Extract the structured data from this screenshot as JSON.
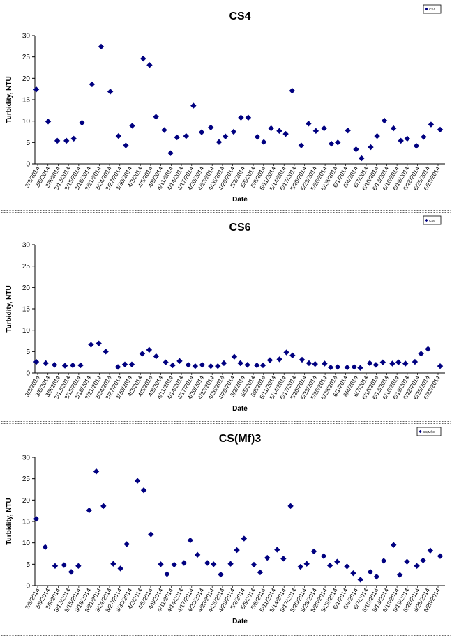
{
  "chart_data": [
    {
      "type": "scatter",
      "title": "CS4",
      "xlabel": "Date",
      "ylabel": "Turbidity, NTU",
      "ylim": [
        0,
        30
      ],
      "yticks": [
        0,
        5,
        10,
        15,
        20,
        25,
        30
      ],
      "grid": false,
      "legend_position": "top-right",
      "legend": "CS4",
      "marker_color": "#000080",
      "xtick_labels": [
        "3/3/2014",
        "3/6/2014",
        "3/9/2014",
        "3/12/2014",
        "3/15/2014",
        "3/18/2014",
        "3/21/2014",
        "3/24/2014",
        "3/27/2014",
        "3/30/2014",
        "4/2/2014",
        "4/5/2014",
        "4/8/2014",
        "4/11/2014",
        "4/14/2014",
        "4/17/2014",
        "4/20/2014",
        "4/23/2014",
        "4/26/2014",
        "4/29/2014",
        "5/2/2014",
        "5/5/2014",
        "5/8/2014",
        "5/11/2014",
        "5/14/2014",
        "5/17/2014",
        "5/20/2014",
        "5/23/2014",
        "5/26/2014",
        "5/29/2014",
        "6/1/2014",
        "6/4/2014",
        "6/7/2014",
        "6/10/2014",
        "6/13/2014",
        "6/16/2014",
        "6/19/2014",
        "6/22/2014",
        "6/25/2014",
        "6/28/2014"
      ],
      "points": [
        {
          "x": 0,
          "y": 17.4
        },
        {
          "x": 1.3,
          "y": 9.9
        },
        {
          "x": 2.3,
          "y": 5.4
        },
        {
          "x": 3.3,
          "y": 5.4
        },
        {
          "x": 4.1,
          "y": 5.9
        },
        {
          "x": 5.0,
          "y": 9.6
        },
        {
          "x": 6.1,
          "y": 18.6
        },
        {
          "x": 7.1,
          "y": 27.4
        },
        {
          "x": 8.1,
          "y": 16.9
        },
        {
          "x": 9.0,
          "y": 6.5
        },
        {
          "x": 9.8,
          "y": 4.3
        },
        {
          "x": 10.5,
          "y": 8.9
        },
        {
          "x": 11.7,
          "y": 24.6
        },
        {
          "x": 12.4,
          "y": 23.1
        },
        {
          "x": 13.1,
          "y": 11.0
        },
        {
          "x": 14.0,
          "y": 7.9
        },
        {
          "x": 14.7,
          "y": 2.5
        },
        {
          "x": 15.4,
          "y": 6.2
        },
        {
          "x": 16.4,
          "y": 6.5
        },
        {
          "x": 17.2,
          "y": 13.6
        },
        {
          "x": 18.1,
          "y": 7.4
        },
        {
          "x": 19.1,
          "y": 8.5
        },
        {
          "x": 20.0,
          "y": 5.1
        },
        {
          "x": 20.7,
          "y": 6.4
        },
        {
          "x": 21.6,
          "y": 7.5
        },
        {
          "x": 22.4,
          "y": 10.8
        },
        {
          "x": 23.2,
          "y": 10.8
        },
        {
          "x": 24.2,
          "y": 6.3
        },
        {
          "x": 24.9,
          "y": 5.1
        },
        {
          "x": 25.7,
          "y": 8.3
        },
        {
          "x": 26.6,
          "y": 7.7
        },
        {
          "x": 27.3,
          "y": 7.0
        },
        {
          "x": 28.0,
          "y": 17.1
        },
        {
          "x": 29.0,
          "y": 4.3
        },
        {
          "x": 29.8,
          "y": 9.4
        },
        {
          "x": 30.6,
          "y": 7.7
        },
        {
          "x": 31.5,
          "y": 8.3
        },
        {
          "x": 32.3,
          "y": 4.7
        },
        {
          "x": 33.0,
          "y": 5.0
        },
        {
          "x": 34.1,
          "y": 7.8
        },
        {
          "x": 35.0,
          "y": 3.4
        },
        {
          "x": 35.6,
          "y": 1.3
        },
        {
          "x": 36.6,
          "y": 3.9
        },
        {
          "x": 37.3,
          "y": 6.5
        },
        {
          "x": 38.1,
          "y": 10.1
        },
        {
          "x": 39.1,
          "y": 8.3
        },
        {
          "x": 39.9,
          "y": 5.4
        },
        {
          "x": 40.6,
          "y": 5.9
        },
        {
          "x": 41.6,
          "y": 4.2
        },
        {
          "x": 42.4,
          "y": 6.3
        },
        {
          "x": 43.2,
          "y": 9.2
        },
        {
          "x": 44.2,
          "y": 8.0
        }
      ]
    },
    {
      "type": "scatter",
      "title": "CS6",
      "xlabel": "Date",
      "ylabel": "Turbidity, NTU",
      "ylim": [
        0,
        30
      ],
      "yticks": [
        0,
        5,
        10,
        15,
        20,
        25,
        30
      ],
      "grid": false,
      "legend_position": "top-right",
      "legend": "CS6",
      "marker_color": "#000080",
      "xtick_labels": [
        "3/3/2014",
        "3/6/2014",
        "3/9/2014",
        "3/12/2014",
        "3/15/2014",
        "3/18/2014",
        "3/21/2014",
        "3/24/2014",
        "3/27/2014",
        "3/30/2014",
        "4/2/2014",
        "4/5/2014",
        "4/8/2014",
        "4/11/2014",
        "4/14/2014",
        "4/17/2014",
        "4/20/2014",
        "4/23/2014",
        "4/26/2014",
        "4/29/2014",
        "5/2/2014",
        "5/5/2014",
        "5/8/2014",
        "5/11/2014",
        "5/14/2014",
        "5/17/2014",
        "5/20/2014",
        "5/23/2014",
        "5/26/2014",
        "5/29/2014",
        "6/1/2014",
        "6/4/2014",
        "6/7/2014",
        "6/10/2014",
        "6/13/2014",
        "6/16/2014",
        "6/19/2014",
        "6/22/2014",
        "6/25/2014",
        "6/28/2014"
      ],
      "points": [
        {
          "x": 0,
          "y": 2.6
        },
        {
          "x": 1.1,
          "y": 2.3
        },
        {
          "x": 2.1,
          "y": 1.9
        },
        {
          "x": 3.3,
          "y": 1.7
        },
        {
          "x": 4.2,
          "y": 1.8
        },
        {
          "x": 5.1,
          "y": 1.8
        },
        {
          "x": 6.3,
          "y": 6.6
        },
        {
          "x": 7.2,
          "y": 6.9
        },
        {
          "x": 8.0,
          "y": 5.0
        },
        {
          "x": 9.4,
          "y": 1.4
        },
        {
          "x": 10.2,
          "y": 2.0
        },
        {
          "x": 11.0,
          "y": 2.0
        },
        {
          "x": 12.2,
          "y": 4.5
        },
        {
          "x": 13.0,
          "y": 5.4
        },
        {
          "x": 13.8,
          "y": 3.9
        },
        {
          "x": 14.9,
          "y": 2.5
        },
        {
          "x": 15.7,
          "y": 1.8
        },
        {
          "x": 16.5,
          "y": 2.8
        },
        {
          "x": 17.5,
          "y": 1.9
        },
        {
          "x": 18.3,
          "y": 1.6
        },
        {
          "x": 19.1,
          "y": 1.9
        },
        {
          "x": 20.1,
          "y": 1.6
        },
        {
          "x": 20.9,
          "y": 1.6
        },
        {
          "x": 21.6,
          "y": 2.3
        },
        {
          "x": 22.8,
          "y": 3.8
        },
        {
          "x": 23.5,
          "y": 2.3
        },
        {
          "x": 24.3,
          "y": 1.9
        },
        {
          "x": 25.4,
          "y": 1.8
        },
        {
          "x": 26.1,
          "y": 1.8
        },
        {
          "x": 26.9,
          "y": 3.0
        },
        {
          "x": 28.0,
          "y": 3.2
        },
        {
          "x": 28.8,
          "y": 4.8
        },
        {
          "x": 29.5,
          "y": 4.1
        },
        {
          "x": 30.6,
          "y": 3.1
        },
        {
          "x": 31.4,
          "y": 2.3
        },
        {
          "x": 32.1,
          "y": 2.1
        },
        {
          "x": 33.2,
          "y": 2.2
        },
        {
          "x": 33.9,
          "y": 1.3
        },
        {
          "x": 34.7,
          "y": 1.4
        },
        {
          "x": 35.8,
          "y": 1.3
        },
        {
          "x": 36.6,
          "y": 1.4
        },
        {
          "x": 37.3,
          "y": 1.2
        },
        {
          "x": 38.4,
          "y": 2.3
        },
        {
          "x": 39.1,
          "y": 1.9
        },
        {
          "x": 39.9,
          "y": 2.5
        },
        {
          "x": 41.0,
          "y": 2.2
        },
        {
          "x": 41.7,
          "y": 2.5
        },
        {
          "x": 42.5,
          "y": 2.2
        },
        {
          "x": 43.6,
          "y": 2.6
        },
        {
          "x": 44.3,
          "y": 4.5
        },
        {
          "x": 45.1,
          "y": 5.6
        },
        {
          "x": 46.5,
          "y": 1.6
        }
      ]
    },
    {
      "type": "scatter",
      "title": "CS(Mf)3",
      "xlabel": "Date",
      "ylabel": "Turbidity, NTU",
      "ylim": [
        0,
        30
      ],
      "yticks": [
        0,
        5,
        10,
        15,
        20,
        25,
        30
      ],
      "grid": false,
      "legend_position": "top-right",
      "legend": "CS(Mf)3",
      "marker_color": "#000080",
      "xtick_labels": [
        "3/3/2014",
        "3/6/2014",
        "3/9/2014",
        "3/12/2014",
        "3/15/2014",
        "3/18/2014",
        "3/21/2014",
        "3/24/2014",
        "3/27/2014",
        "3/30/2014",
        "4/2/2014",
        "4/5/2014",
        "4/8/2014",
        "4/11/2014",
        "4/14/2014",
        "4/17/2014",
        "4/20/2014",
        "4/23/2014",
        "4/26/2014",
        "4/29/2014",
        "5/2/2014",
        "5/5/2014",
        "5/8/2014",
        "5/11/2014",
        "5/14/2014",
        "5/17/2014",
        "5/20/2014",
        "5/23/2014",
        "5/26/2014",
        "5/29/2014",
        "6/1/2014",
        "6/4/2014",
        "6/7/2014",
        "6/10/2014",
        "6/13/2014",
        "6/16/2014",
        "6/19/2014",
        "6/22/2014",
        "6/25/2014",
        "6/28/2014"
      ],
      "points": [
        {
          "x": 0,
          "y": 15.6
        },
        {
          "x": 1.0,
          "y": 9.0
        },
        {
          "x": 2.1,
          "y": 4.6
        },
        {
          "x": 3.1,
          "y": 4.8
        },
        {
          "x": 3.9,
          "y": 3.2
        },
        {
          "x": 4.7,
          "y": 4.6
        },
        {
          "x": 5.9,
          "y": 17.6
        },
        {
          "x": 6.7,
          "y": 26.7
        },
        {
          "x": 7.5,
          "y": 18.6
        },
        {
          "x": 8.6,
          "y": 5.1
        },
        {
          "x": 9.4,
          "y": 4.0
        },
        {
          "x": 10.1,
          "y": 9.7
        },
        {
          "x": 11.3,
          "y": 24.5
        },
        {
          "x": 12.0,
          "y": 22.3
        },
        {
          "x": 12.8,
          "y": 12.0
        },
        {
          "x": 13.9,
          "y": 5.0
        },
        {
          "x": 14.6,
          "y": 2.7
        },
        {
          "x": 15.4,
          "y": 4.9
        },
        {
          "x": 16.5,
          "y": 5.3
        },
        {
          "x": 17.2,
          "y": 10.6
        },
        {
          "x": 18.0,
          "y": 7.2
        },
        {
          "x": 19.1,
          "y": 5.3
        },
        {
          "x": 19.8,
          "y": 5.0
        },
        {
          "x": 20.6,
          "y": 2.6
        },
        {
          "x": 21.7,
          "y": 5.1
        },
        {
          "x": 22.4,
          "y": 8.3
        },
        {
          "x": 23.2,
          "y": 11.0
        },
        {
          "x": 24.3,
          "y": 4.9
        },
        {
          "x": 25.0,
          "y": 3.1
        },
        {
          "x": 25.8,
          "y": 6.5
        },
        {
          "x": 26.9,
          "y": 8.4
        },
        {
          "x": 27.6,
          "y": 6.3
        },
        {
          "x": 28.4,
          "y": 18.6
        },
        {
          "x": 29.5,
          "y": 4.4
        },
        {
          "x": 30.2,
          "y": 5.1
        },
        {
          "x": 31.0,
          "y": 8.0
        },
        {
          "x": 32.1,
          "y": 6.9
        },
        {
          "x": 32.8,
          "y": 4.7
        },
        {
          "x": 33.6,
          "y": 5.6
        },
        {
          "x": 34.7,
          "y": 4.5
        },
        {
          "x": 35.4,
          "y": 2.9
        },
        {
          "x": 36.2,
          "y": 1.4
        },
        {
          "x": 37.3,
          "y": 3.2
        },
        {
          "x": 38.0,
          "y": 2.1
        },
        {
          "x": 38.8,
          "y": 5.8
        },
        {
          "x": 39.9,
          "y": 9.5
        },
        {
          "x": 40.6,
          "y": 2.5
        },
        {
          "x": 41.4,
          "y": 5.6
        },
        {
          "x": 42.5,
          "y": 4.6
        },
        {
          "x": 43.2,
          "y": 5.9
        },
        {
          "x": 44.0,
          "y": 8.2
        },
        {
          "x": 45.1,
          "y": 6.9
        }
      ]
    }
  ]
}
